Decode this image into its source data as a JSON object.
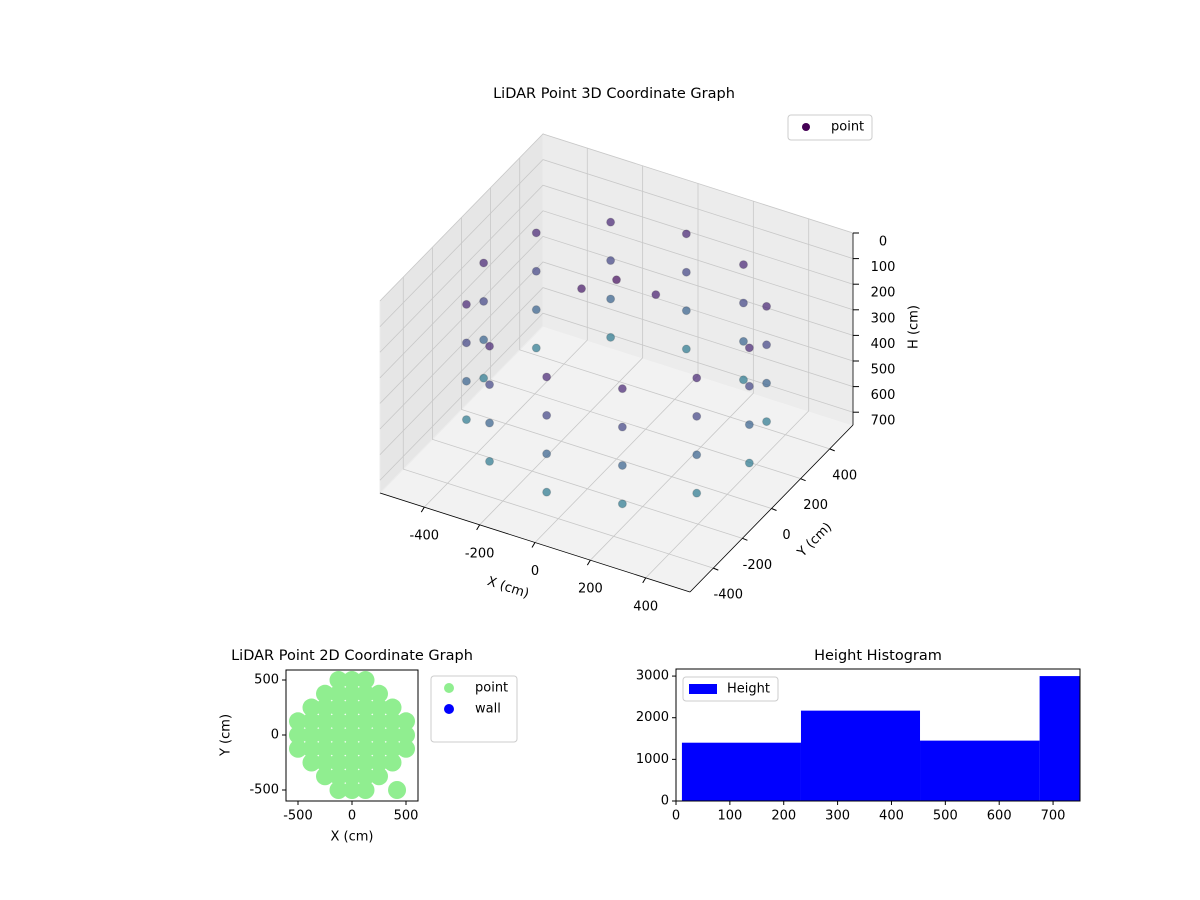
{
  "chart_data": [
    {
      "type": "scatter3d",
      "title": "LiDAR Point 3D Coordinate Graph",
      "x_label": "X (cm)",
      "y_label": "Y (cm)",
      "z_label": "H (cm)",
      "xlim": [
        -560,
        560
      ],
      "ylim": [
        -560,
        560
      ],
      "zlim": [
        0,
        750
      ],
      "z_inverted": true,
      "xticks": [
        -400,
        -200,
        0,
        200,
        400
      ],
      "yticks": [
        -400,
        -200,
        0,
        200,
        400
      ],
      "zticks": [
        0,
        100,
        200,
        300,
        400,
        500,
        600,
        700
      ],
      "colormap": "viridis",
      "legend": "upper right",
      "series": [
        {
          "name": "point",
          "color": "#440154",
          "x": [
            480,
            480,
            480,
            480,
            416,
            416,
            416,
            416,
            240,
            240,
            240,
            240,
            0,
            0,
            0,
            0,
            -240,
            -240,
            -240,
            -240,
            -416,
            -416,
            -416,
            -416,
            -480,
            -480,
            -480,
            -480,
            -416,
            -416,
            -416,
            -416,
            -240,
            -240,
            -240,
            -240,
            0,
            0,
            0,
            0,
            240,
            240,
            240,
            240,
            416,
            416,
            416,
            416,
            0,
            100,
            -100
          ],
          "y": [
            0,
            0,
            0,
            0,
            240,
            240,
            240,
            240,
            416,
            416,
            416,
            416,
            480,
            480,
            480,
            480,
            416,
            416,
            416,
            416,
            240,
            240,
            240,
            240,
            0,
            0,
            0,
            0,
            -240,
            -240,
            -240,
            -240,
            -416,
            -416,
            -416,
            -416,
            -480,
            -480,
            -480,
            -480,
            -416,
            -416,
            -416,
            -416,
            -240,
            -240,
            -240,
            -240,
            0,
            80,
            -50
          ],
          "z": [
            150,
            300,
            450,
            600,
            150,
            300,
            450,
            600,
            150,
            300,
            450,
            600,
            150,
            300,
            450,
            600,
            150,
            300,
            450,
            600,
            150,
            300,
            450,
            600,
            150,
            300,
            450,
            600,
            150,
            300,
            450,
            600,
            150,
            300,
            450,
            600,
            150,
            300,
            450,
            600,
            150,
            300,
            450,
            600,
            150,
            300,
            450,
            600,
            50,
            120,
            90
          ]
        }
      ]
    },
    {
      "type": "scatter",
      "title": "LiDAR Point 2D Coordinate Graph",
      "x_label": "X (cm)",
      "y_label": "Y (cm)",
      "xlim": [
        -611,
        611
      ],
      "ylim": [
        -600,
        591
      ],
      "xticks": [
        -500,
        0,
        500
      ],
      "yticks": [
        -500,
        0,
        500
      ],
      "legend": "outside right",
      "series": [
        {
          "name": "point",
          "color": "#90ee90",
          "x": [
            -500,
            -500,
            -500,
            -375,
            -375,
            -375,
            -375,
            -375,
            -250,
            -250,
            -250,
            -250,
            -250,
            -250,
            -250,
            -125,
            -125,
            -125,
            -125,
            -125,
            -125,
            -125,
            -125,
            -125,
            0,
            0,
            0,
            0,
            0,
            0,
            0,
            0,
            0,
            125,
            125,
            125,
            125,
            125,
            125,
            125,
            125,
            125,
            250,
            250,
            250,
            250,
            250,
            250,
            250,
            375,
            375,
            375,
            375,
            375,
            500,
            500,
            500,
            417
          ],
          "y": [
            -125,
            0,
            125,
            -250,
            -125,
            0,
            125,
            250,
            -375,
            -250,
            -125,
            0,
            125,
            250,
            375,
            -500,
            -375,
            -250,
            -125,
            0,
            125,
            250,
            375,
            500,
            -500,
            -375,
            -250,
            -125,
            0,
            125,
            250,
            375,
            500,
            -500,
            -375,
            -250,
            -125,
            0,
            125,
            250,
            375,
            500,
            -375,
            -250,
            -125,
            0,
            125,
            250,
            375,
            -250,
            -125,
            0,
            125,
            250,
            -125,
            0,
            125,
            -500
          ]
        },
        {
          "name": "wall",
          "color": "#0000ff",
          "x": [],
          "y": []
        }
      ]
    },
    {
      "type": "histogram",
      "title": "Height Histogram",
      "bins": [
        11,
        232,
        453,
        675,
        896
      ],
      "xlim": [
        0,
        750
      ],
      "ylim": [
        0,
        3170
      ],
      "xticks": [
        0,
        100,
        200,
        300,
        400,
        500,
        600,
        700
      ],
      "yticks": [
        0,
        1000,
        2000,
        3000
      ],
      "legend": "upper left",
      "series": [
        {
          "name": "Height",
          "color": "#0000ff",
          "values": [
            1400,
            2170,
            1450,
            3000
          ]
        }
      ]
    }
  ]
}
